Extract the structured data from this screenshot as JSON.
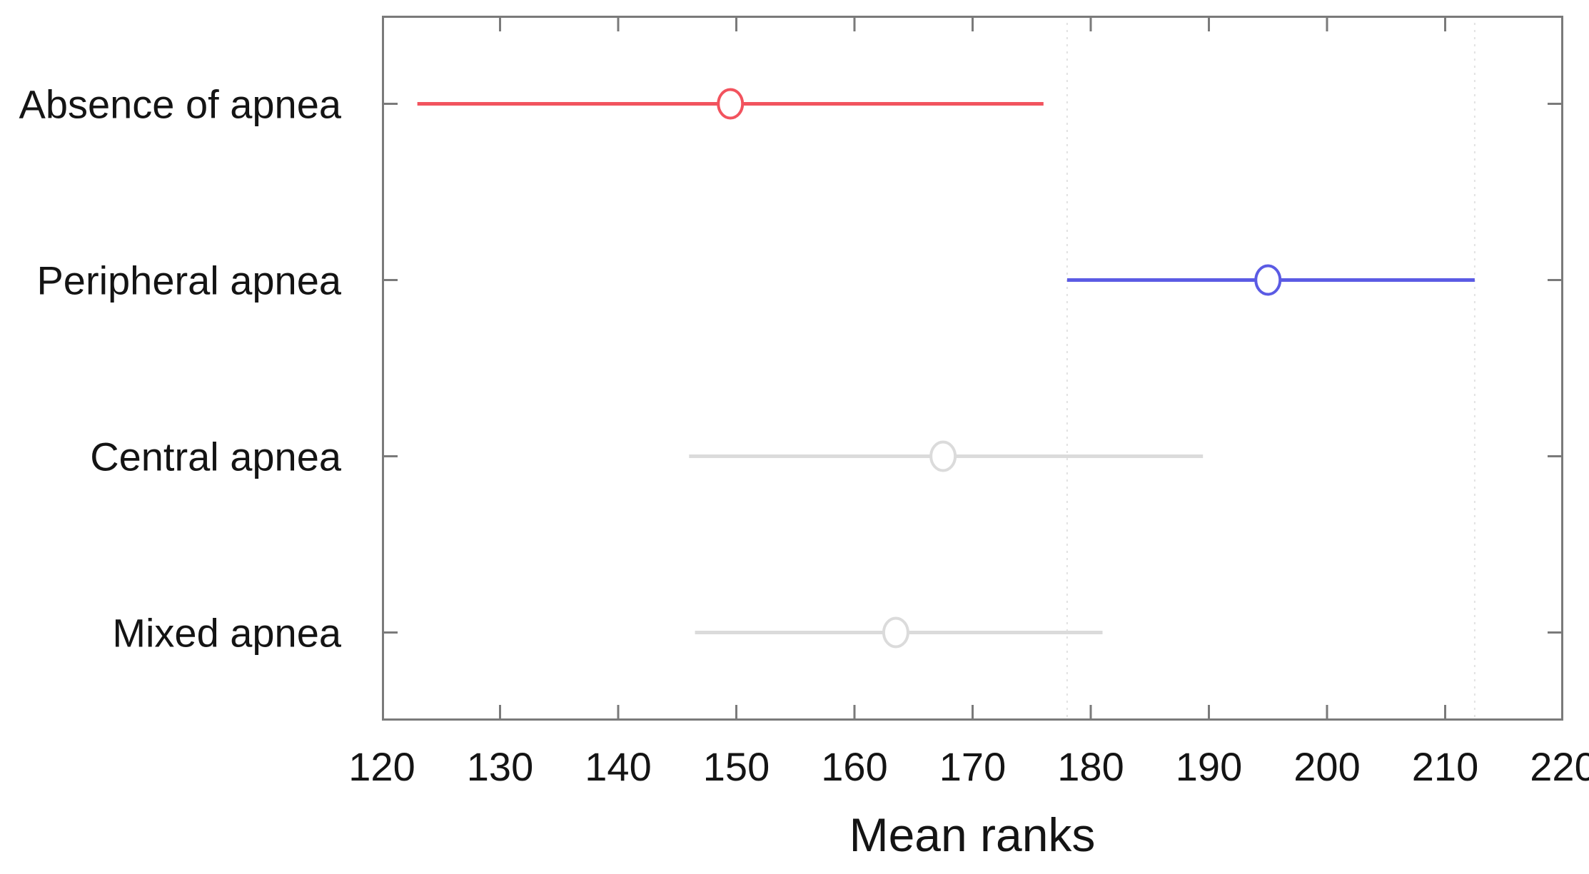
{
  "chart_data": {
    "type": "interval_comparison",
    "description": "Multiple comparison of mean ranks with comparison intervals (Kruskal-Wallis / multcompare style plot)",
    "title": "",
    "xlabel": "Mean ranks",
    "ylabel": "",
    "xlim": [
      120,
      220
    ],
    "xticks": [
      120,
      130,
      140,
      150,
      160,
      170,
      180,
      190,
      200,
      210,
      220
    ],
    "grid": "off",
    "legend": "none",
    "axis": {
      "box": true,
      "tick_direction": "in",
      "ticks_mirrored": true
    },
    "categories": [
      "Absence of apnea",
      "Peripheral apnea",
      "Central apnea",
      "Mixed apnea"
    ],
    "series": [
      {
        "name": "Absence of apnea",
        "mean": 149.5,
        "ci_low": 123,
        "ci_high": 176,
        "color": "#f2535e",
        "role": "significantly-different",
        "marker": "circle"
      },
      {
        "name": "Peripheral apnea",
        "mean": 195,
        "ci_low": 178,
        "ci_high": 212.5,
        "color": "#5b5be4",
        "role": "selected-group",
        "marker": "circle"
      },
      {
        "name": "Central apnea",
        "mean": 167.5,
        "ci_low": 146,
        "ci_high": 189.5,
        "color": "#dbdbdb",
        "role": "not-significant",
        "marker": "circle"
      },
      {
        "name": "Mixed apnea",
        "mean": 163.5,
        "ci_low": 146.5,
        "ci_high": 181,
        "color": "#dbdbdb",
        "role": "not-significant",
        "marker": "circle"
      }
    ],
    "reference_lines": {
      "x": [
        178,
        212.5
      ],
      "style": "dotted",
      "color": "#e2e2e2"
    },
    "colors": {
      "spine": "#7a7a7a",
      "tick": "#7a7a7a",
      "text": "#141414",
      "marker_fill": "#ffffff"
    }
  }
}
